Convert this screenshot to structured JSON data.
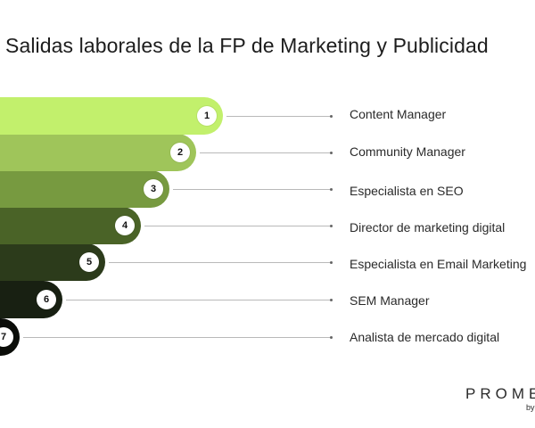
{
  "title": "Salidas laborales de la FP de Marketing y Publicidad",
  "items": [
    {
      "number": "1",
      "label": "Content Manager",
      "color": "#c2f06c"
    },
    {
      "number": "2",
      "label": "Community Manager",
      "color": "#9fc55a"
    },
    {
      "number": "3",
      "label": "Especialista en SEO",
      "color": "#779a40"
    },
    {
      "number": "4",
      "label": "Director de marketing digital",
      "color": "#4a6327"
    },
    {
      "number": "5",
      "label": "Especialista en Email Marketing",
      "color": "#2c3b1b"
    },
    {
      "number": "6",
      "label": "SEM Manager",
      "color": "#182012"
    },
    {
      "number": "7",
      "label": "Analista de mercado digital",
      "color": "#0b0d09"
    }
  ],
  "brand": {
    "name": "PROME",
    "sub": "by"
  }
}
